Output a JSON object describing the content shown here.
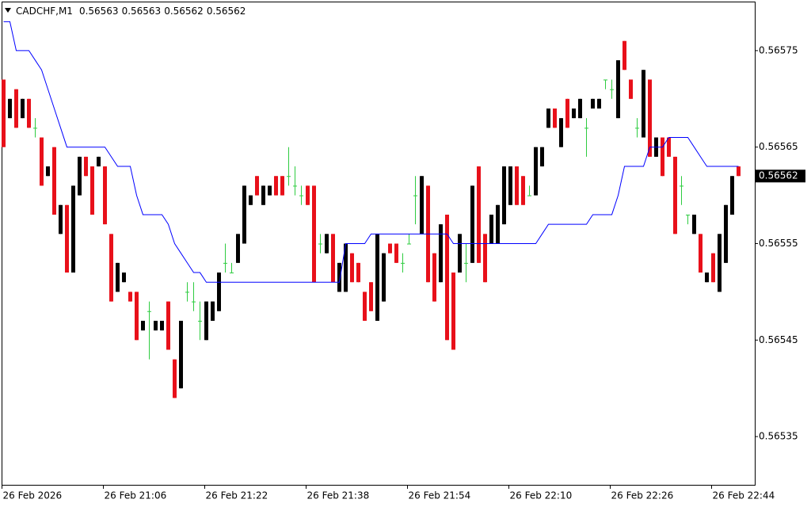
{
  "chart_data": {
    "type": "candlestick",
    "title": "CADCHF,M1",
    "categories": [
      "26 Feb 2026",
      null,
      null,
      null,
      null,
      null,
      null,
      null,
      null,
      null,
      null,
      null,
      null,
      null,
      null,
      null,
      "26 Feb 21:06",
      null,
      null,
      null,
      null,
      null,
      null,
      null,
      null,
      null,
      null,
      null,
      null,
      null,
      null,
      null,
      "26 Feb 21:22",
      null,
      null,
      null,
      null,
      null,
      null,
      null,
      null,
      null,
      null,
      null,
      null,
      null,
      null,
      null,
      "26 Feb 21:38",
      null,
      null,
      null,
      null,
      null,
      null,
      null,
      null,
      null,
      null,
      null,
      null,
      null,
      null,
      null,
      "26 Feb 21:54",
      null,
      null,
      null,
      null,
      null,
      null,
      null,
      null,
      null,
      null,
      null,
      null,
      null,
      null,
      null,
      "26 Feb 22:10",
      null,
      null,
      null,
      null,
      null,
      null,
      null,
      null,
      null,
      null,
      null,
      null,
      null,
      null,
      null,
      "26 Feb 22:26",
      null,
      null,
      null,
      null,
      null,
      null,
      null,
      null,
      null,
      null,
      null,
      null,
      null,
      null,
      null,
      "26 Feb 22:44",
      null,
      null,
      null,
      null
    ],
    "open": [
      0.56572,
      0.56568,
      0.56571,
      0.56568,
      0.5657,
      0.56567,
      0.56566,
      0.56562,
      0.56565,
      0.56556,
      0.56559,
      0.56552,
      0.5656,
      0.56564,
      0.56563,
      0.56563,
      0.56563,
      0.56556,
      0.5655,
      0.56551,
      0.5655,
      0.5655,
      0.56546,
      0.56548,
      0.56546,
      0.56546,
      0.56549,
      0.56543,
      0.5654,
      0.5655,
      0.56549,
      0.56547,
      0.56545,
      0.56547,
      0.56548,
      0.56553,
      0.56552,
      0.56553,
      0.56555,
      0.56559,
      0.56562,
      0.56559,
      0.5656,
      0.56562,
      0.56562,
      0.56562,
      0.56561,
      0.5656,
      0.56561,
      0.56561,
      0.56555,
      0.56554,
      0.56556,
      0.5655,
      0.5655,
      0.56554,
      0.56553,
      0.5655,
      0.56551,
      0.56547,
      0.56549,
      0.56555,
      0.56555,
      0.56553,
      0.56555,
      0.5656,
      0.56556,
      0.56561,
      0.56554,
      0.56551,
      0.56558,
      0.56552,
      0.56552,
      0.56553,
      0.56553,
      0.56563,
      0.56556,
      0.56555,
      0.56555,
      0.56557,
      0.56559,
      0.56563,
      0.56562,
      0.5656,
      0.5656,
      0.56563,
      0.56567,
      0.56569,
      0.56565,
      0.5657,
      0.56568,
      0.56568,
      0.56567,
      0.56569,
      0.56569,
      0.56572,
      0.56571,
      0.56568,
      0.56576,
      0.56572,
      0.56567,
      0.56566,
      0.56572,
      0.56564,
      0.56566,
      0.56566,
      0.56564,
      0.56561,
      0.56558,
      0.56556,
      0.56556,
      0.56551,
      0.56554,
      0.5655,
      0.56553,
      0.56558,
      0.56563
    ],
    "high": [
      0.56572,
      0.5657,
      0.56571,
      0.5657,
      0.5657,
      0.56568,
      0.56566,
      0.56563,
      0.56565,
      0.56559,
      0.56559,
      0.56561,
      0.56564,
      0.56564,
      0.56563,
      0.56564,
      0.56563,
      0.56556,
      0.56553,
      0.56552,
      0.5655,
      0.5655,
      0.56547,
      0.56549,
      0.56547,
      0.56547,
      0.56549,
      0.56543,
      0.56547,
      0.56551,
      0.56551,
      0.56549,
      0.56549,
      0.56549,
      0.56552,
      0.56555,
      0.56553,
      0.56556,
      0.56561,
      0.5656,
      0.56562,
      0.56561,
      0.56561,
      0.56562,
      0.56562,
      0.56565,
      0.56563,
      0.56561,
      0.56561,
      0.56561,
      0.56556,
      0.56556,
      0.56556,
      0.56553,
      0.56555,
      0.56554,
      0.56553,
      0.5655,
      0.56551,
      0.56556,
      0.56554,
      0.56555,
      0.56555,
      0.56554,
      0.56556,
      0.56562,
      0.56562,
      0.56561,
      0.56554,
      0.56557,
      0.56558,
      0.56552,
      0.56556,
      0.56555,
      0.56561,
      0.56563,
      0.56556,
      0.56558,
      0.56559,
      0.56563,
      0.56563,
      0.56563,
      0.56562,
      0.56561,
      0.56565,
      0.56565,
      0.56569,
      0.56569,
      0.56568,
      0.5657,
      0.56569,
      0.5657,
      0.56568,
      0.5657,
      0.5657,
      0.56572,
      0.56572,
      0.56574,
      0.56576,
      0.56572,
      0.56568,
      0.56573,
      0.56572,
      0.56566,
      0.56566,
      0.56566,
      0.56564,
      0.56562,
      0.56558,
      0.56558,
      0.56556,
      0.56552,
      0.56554,
      0.56556,
      0.56559,
      0.56562,
      0.56563
    ],
    "low": [
      0.56565,
      0.56568,
      0.56567,
      0.56568,
      0.56567,
      0.56566,
      0.56561,
      0.56562,
      0.56558,
      0.56556,
      0.56552,
      0.56552,
      0.5656,
      0.56562,
      0.56558,
      0.56563,
      0.56557,
      0.56549,
      0.5655,
      0.56551,
      0.56549,
      0.56545,
      0.56546,
      0.56543,
      0.56546,
      0.56546,
      0.56544,
      0.56539,
      0.5654,
      0.56549,
      0.56548,
      0.56545,
      0.56545,
      0.56547,
      0.56548,
      0.56552,
      0.56552,
      0.56553,
      0.56555,
      0.56559,
      0.5656,
      0.56559,
      0.5656,
      0.5656,
      0.5656,
      0.56561,
      0.5656,
      0.56559,
      0.56559,
      0.56551,
      0.56554,
      0.56554,
      0.56551,
      0.5655,
      0.5655,
      0.56551,
      0.56551,
      0.56547,
      0.56548,
      0.56547,
      0.56549,
      0.56554,
      0.56553,
      0.56552,
      0.56555,
      0.56557,
      0.56556,
      0.56551,
      0.56549,
      0.56551,
      0.56545,
      0.56544,
      0.56552,
      0.56551,
      0.56553,
      0.56553,
      0.56551,
      0.56555,
      0.56555,
      0.56557,
      0.56559,
      0.56559,
      0.56559,
      0.5656,
      0.5656,
      0.56563,
      0.56567,
      0.56567,
      0.56565,
      0.56567,
      0.56568,
      0.56568,
      0.56564,
      0.56569,
      0.56569,
      0.56571,
      0.5657,
      0.56568,
      0.56573,
      0.5657,
      0.56566,
      0.56566,
      0.56564,
      0.56564,
      0.56562,
      0.56564,
      0.56556,
      0.56559,
      0.56557,
      0.56556,
      0.56552,
      0.56551,
      0.56551,
      0.5655,
      0.56553,
      0.56558,
      0.56562
    ],
    "close": [
      0.56565,
      0.5657,
      0.56567,
      0.5657,
      0.56567,
      0.56567,
      0.56561,
      0.56563,
      0.56558,
      0.56559,
      0.56552,
      0.56561,
      0.56564,
      0.56562,
      0.56558,
      0.56564,
      0.56557,
      0.56549,
      0.56553,
      0.56552,
      0.56549,
      0.56545,
      0.56547,
      0.56548,
      0.56547,
      0.56547,
      0.56544,
      0.56539,
      0.56547,
      0.5655,
      0.56549,
      0.56547,
      0.56549,
      0.56549,
      0.56552,
      0.56553,
      0.56552,
      0.56556,
      0.56561,
      0.5656,
      0.5656,
      0.56561,
      0.56561,
      0.5656,
      0.5656,
      0.56562,
      0.56561,
      0.5656,
      0.56559,
      0.56551,
      0.56555,
      0.56556,
      0.56551,
      0.56553,
      0.56555,
      0.56551,
      0.56551,
      0.56547,
      0.56548,
      0.56556,
      0.56554,
      0.56554,
      0.56553,
      0.56553,
      0.56555,
      0.5656,
      0.56562,
      0.56551,
      0.56549,
      0.56557,
      0.56545,
      0.56544,
      0.56556,
      0.56553,
      0.56561,
      0.56553,
      0.56551,
      0.56558,
      0.56559,
      0.56563,
      0.56563,
      0.56559,
      0.56559,
      0.5656,
      0.56565,
      0.56565,
      0.56569,
      0.56567,
      0.56568,
      0.56567,
      0.56569,
      0.5657,
      0.56567,
      0.5657,
      0.5657,
      0.56572,
      0.56571,
      0.56574,
      0.56573,
      0.5657,
      0.56567,
      0.56573,
      0.56564,
      0.56566,
      0.56562,
      0.56564,
      0.56556,
      0.56561,
      0.56558,
      0.56558,
      0.56552,
      0.56552,
      0.56551,
      0.56556,
      0.56559,
      0.56562,
      0.56562
    ],
    "up_color": "#000000",
    "down_color": "#e8101a",
    "doji_color": "#2ecc40",
    "line": {
      "color": "#0000ff",
      "values": [
        0.56578,
        0.56578,
        0.56575,
        0.56575,
        0.56575,
        0.56574,
        0.56573,
        0.56571,
        0.56569,
        0.56567,
        0.56565,
        0.56565,
        0.56565,
        0.56565,
        0.56565,
        0.56565,
        0.56565,
        0.56564,
        0.56563,
        0.56563,
        0.56563,
        0.5656,
        0.56558,
        0.56558,
        0.56558,
        0.56558,
        0.56557,
        0.56555,
        0.56554,
        0.56553,
        0.56552,
        0.56552,
        0.56551,
        0.56551,
        0.56551,
        0.56551,
        0.56551,
        0.56551,
        0.56551,
        0.56551,
        0.56551,
        0.56551,
        0.56551,
        0.56551,
        0.56551,
        0.56551,
        0.56551,
        0.56551,
        0.56551,
        0.56551,
        0.56551,
        0.56551,
        0.56551,
        0.56551,
        0.56555,
        0.56555,
        0.56555,
        0.56555,
        0.56556,
        0.56556,
        0.56556,
        0.56556,
        0.56556,
        0.56556,
        0.56556,
        0.56556,
        0.56556,
        0.56556,
        0.56556,
        0.56556,
        0.56556,
        0.56555,
        0.56555,
        0.56555,
        0.56555,
        0.56555,
        0.56555,
        0.56555,
        0.56555,
        0.56555,
        0.56555,
        0.56555,
        0.56555,
        0.56555,
        0.56555,
        0.56556,
        0.56557,
        0.56557,
        0.56557,
        0.56557,
        0.56557,
        0.56557,
        0.56557,
        0.56558,
        0.56558,
        0.56558,
        0.56558,
        0.5656,
        0.56563,
        0.56563,
        0.56563,
        0.56563,
        0.56565,
        0.56565,
        0.56565,
        0.56566,
        0.56566,
        0.56566,
        0.56566,
        0.56565,
        0.56564,
        0.56563,
        0.56563,
        0.56563,
        0.56563,
        0.56563,
        0.56563
      ]
    },
    "ylim": [
      0.5653,
      0.5658
    ],
    "yticks": [
      0.56535,
      0.56545,
      0.56555,
      0.56565,
      0.56575
    ]
  }
}
